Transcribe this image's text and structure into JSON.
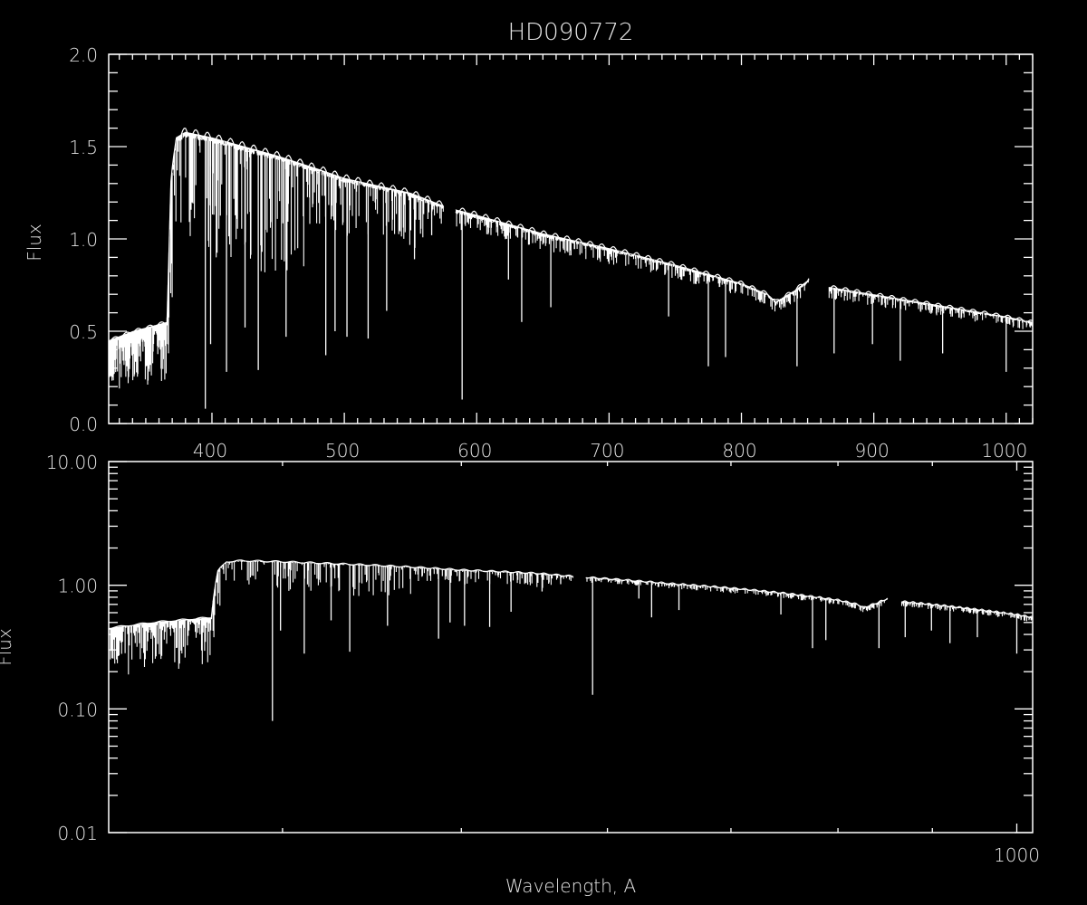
{
  "chart_data": [
    {
      "type": "line",
      "title": "HD090772",
      "xlabel": "",
      "ylabel": "Flux",
      "xscale": "linear",
      "yscale": "linear",
      "xlim": [
        322,
        1020
      ],
      "ylim": [
        0.0,
        2.0
      ],
      "x_tick_labels": [
        "400",
        "500",
        "600",
        "700",
        "800",
        "900",
        "1000"
      ],
      "x_ticks": [
        400,
        500,
        600,
        700,
        800,
        900,
        1000
      ],
      "y_tick_labels": [
        "0.0",
        "0.5",
        "1.0",
        "1.5",
        "2.0"
      ],
      "y_ticks": [
        0.0,
        0.5,
        1.0,
        1.5,
        2.0
      ],
      "grid": false,
      "legend": "none",
      "colors": {
        "background": "#000000",
        "series": "#ffffff",
        "axes": "#ffffff"
      }
    },
    {
      "type": "line",
      "xlabel": "Wavelength, A",
      "ylabel": "Flux",
      "xscale": "log",
      "yscale": "log",
      "xlim": [
        322,
        1020
      ],
      "ylim": [
        0.01,
        10.0
      ],
      "x_tick_labels": [
        "1000"
      ],
      "x_ticks": [
        1000
      ],
      "y_tick_labels": [
        "0.01",
        "0.10",
        "1.00",
        "10.00"
      ],
      "y_ticks": [
        0.01,
        0.1,
        1.0,
        10.0
      ],
      "grid": false,
      "legend": "none",
      "colors": {
        "background": "#000000",
        "series": "#ffffff",
        "axes": "#ffffff"
      }
    }
  ],
  "spectrum": {
    "continuum": [
      [
        322,
        0.45
      ],
      [
        340,
        0.5
      ],
      [
        366,
        0.55
      ],
      [
        369,
        1.3
      ],
      [
        373,
        1.55
      ],
      [
        380,
        1.58
      ],
      [
        400,
        1.55
      ],
      [
        450,
        1.45
      ],
      [
        480,
        1.38
      ],
      [
        500,
        1.33
      ],
      [
        550,
        1.25
      ],
      [
        575,
        1.18
      ],
      [
        584,
        1.16
      ],
      [
        600,
        1.13
      ],
      [
        650,
        1.03
      ],
      [
        700,
        0.95
      ],
      [
        750,
        0.86
      ],
      [
        800,
        0.76
      ],
      [
        820,
        0.7
      ],
      [
        826,
        0.66
      ],
      [
        840,
        0.72
      ],
      [
        851,
        0.78
      ],
      [
        866,
        0.74
      ],
      [
        900,
        0.7
      ],
      [
        950,
        0.64
      ],
      [
        1000,
        0.58
      ],
      [
        1020,
        0.55
      ]
    ],
    "gaps": [
      [
        575,
        584
      ],
      [
        851,
        866
      ]
    ],
    "absorption_lines": [
      [
        395,
        0.08
      ],
      [
        399,
        0.43
      ],
      [
        411,
        0.28
      ],
      [
        425,
        0.52
      ],
      [
        435,
        0.29
      ],
      [
        456,
        0.47
      ],
      [
        486,
        0.37
      ],
      [
        493,
        0.5
      ],
      [
        502,
        0.47
      ],
      [
        518,
        0.46
      ],
      [
        532,
        0.61
      ],
      [
        553,
        0.89
      ],
      [
        566,
        1.02
      ],
      [
        589,
        0.13
      ],
      [
        624,
        0.78
      ],
      [
        634,
        0.55
      ],
      [
        656,
        0.63
      ],
      [
        745,
        0.58
      ],
      [
        775,
        0.31
      ],
      [
        788,
        0.36
      ],
      [
        842,
        0.31
      ],
      [
        870,
        0.38
      ],
      [
        899,
        0.43
      ],
      [
        920,
        0.34
      ],
      [
        952,
        0.38
      ],
      [
        1000,
        0.28
      ]
    ]
  }
}
